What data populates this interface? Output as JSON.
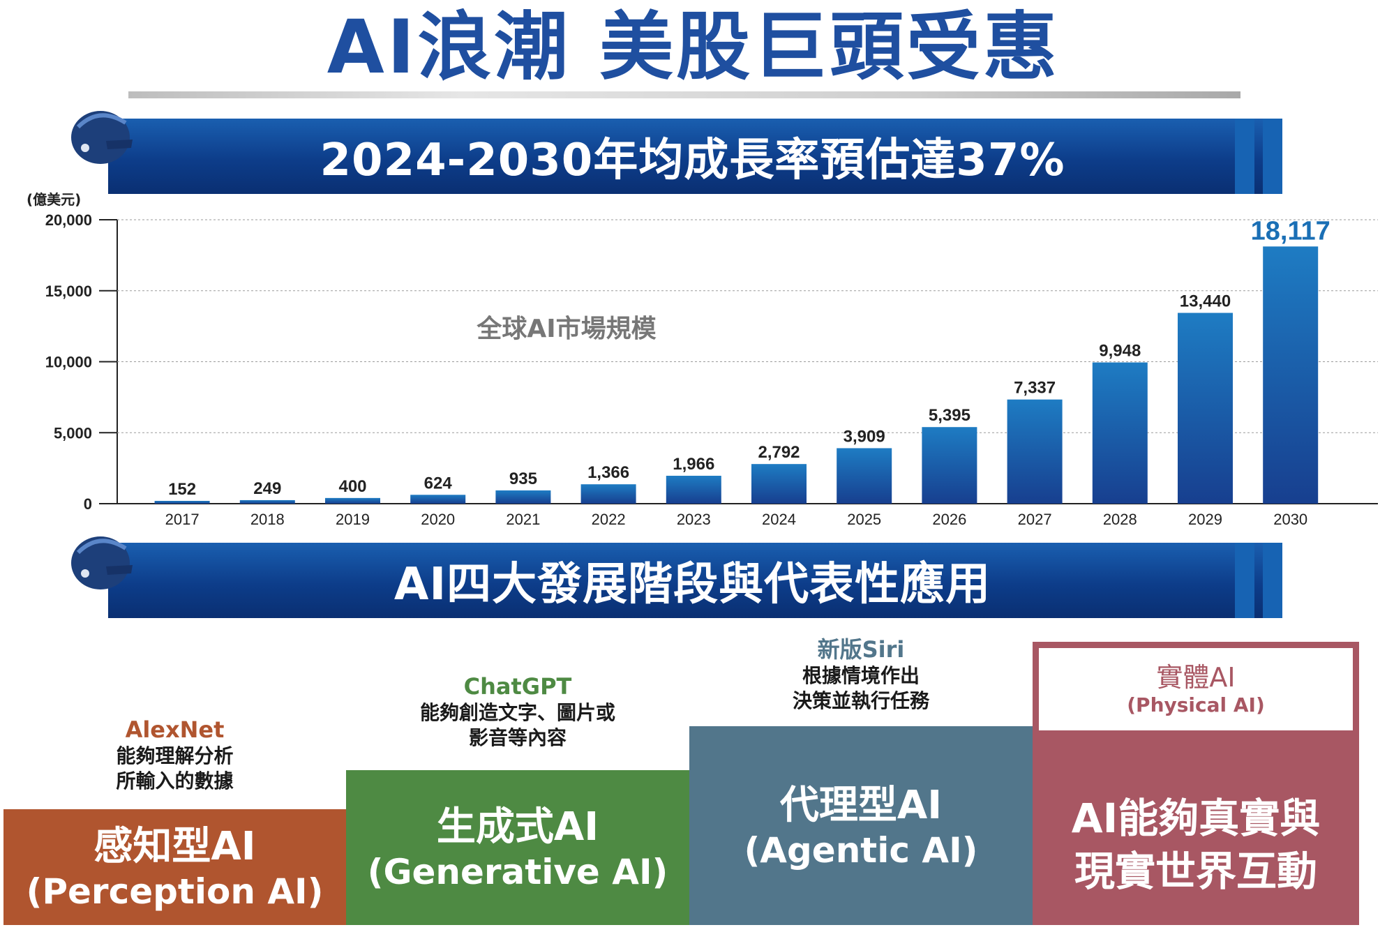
{
  "title": "AI浪潮 美股巨頭受惠",
  "banner1": "2024-2030年均成長率預估達37%",
  "banner2": "AI四大發展階段與代表性應用",
  "chart_data": {
    "type": "bar",
    "unit_label": "(億美元)",
    "series_label": "全球AI市場規模",
    "categories": [
      "2017",
      "2018",
      "2019",
      "2020",
      "2021",
      "2022",
      "2023",
      "2024",
      "2025",
      "2026",
      "2027",
      "2028",
      "2029",
      "2030"
    ],
    "values": [
      152,
      249,
      400,
      624,
      935,
      1366,
      1966,
      2792,
      3909,
      5395,
      7337,
      9948,
      13440,
      18117
    ],
    "value_labels": [
      "152",
      "249",
      "400",
      "624",
      "935",
      "1,366",
      "1,966",
      "2,792",
      "3,909",
      "5,395",
      "7,337",
      "9,948",
      "13,440",
      "18,117"
    ],
    "yticks": [
      0,
      5000,
      10000,
      15000,
      20000
    ],
    "ytick_labels": [
      "0",
      "5,000",
      "10,000",
      "15,000",
      "20,000"
    ],
    "ylim": [
      0,
      20000
    ],
    "grid": true,
    "highlight_last": true,
    "colors": {
      "bar_top": "#1e7cc3",
      "bar_bottom": "#173f8f",
      "highlight": "#1a6fb5"
    }
  },
  "stages": [
    {
      "app": "AlexNet",
      "desc": [
        "能夠理解分析",
        "所輸入的數據"
      ],
      "title": "感知型AI",
      "sub": "(Perception AI)",
      "color": "#b0552f",
      "app_color": "#b0552f"
    },
    {
      "app": "ChatGPT",
      "desc": [
        "能夠創造文字、圖片或",
        "影音等內容"
      ],
      "title": "生成式AI",
      "sub": "(Generative AI)",
      "color": "#4e8a43",
      "app_color": "#4e8a43"
    },
    {
      "app": "新版Siri",
      "desc": [
        "根據情境作出",
        "決策並執行任務"
      ],
      "title": "代理型AI",
      "sub": "(Agentic AI)",
      "color": "#52768b",
      "app_color": "#52768b"
    },
    {
      "app": "實體AI",
      "app_sub": "(Physical AI)",
      "title": "AI能夠真實與",
      "sub": "現實世界互動",
      "color": "#a85763",
      "app_color": "#a85763"
    }
  ]
}
